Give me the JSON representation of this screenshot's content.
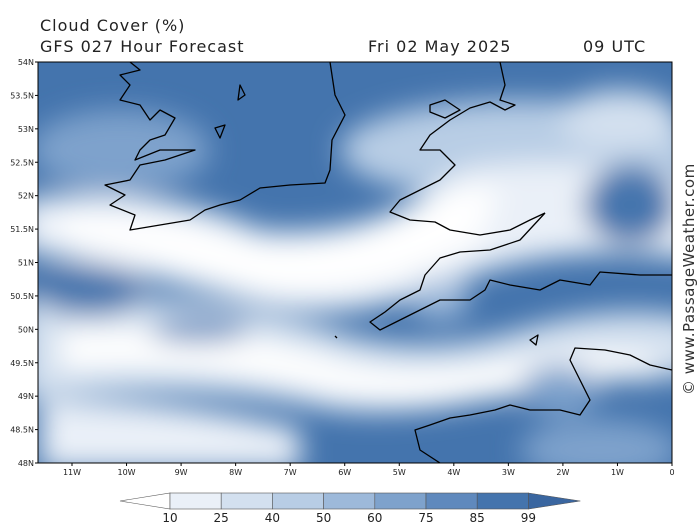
{
  "header": {
    "title": "Cloud Cover (%)",
    "subtitle": "GFS 027 Hour Forecast",
    "date": "Fri 02 May 2025",
    "time": "09 UTC"
  },
  "map": {
    "lat_labels": [
      "54N",
      "53.5N",
      "53N",
      "52.5N",
      "52N",
      "51.5N",
      "51N",
      "50.5N",
      "50N",
      "49.5N",
      "49N",
      "48.5N",
      "48N"
    ],
    "lon_labels": [
      "11W",
      "10W",
      "9W",
      "8W",
      "7W",
      "6W",
      "5W",
      "4W",
      "3W",
      "2W",
      "1W",
      "0"
    ]
  },
  "colorbar": {
    "labels": [
      10,
      25,
      40,
      50,
      60,
      75,
      85,
      99
    ],
    "colors": [
      "#ffffff",
      "#eaf0f8",
      "#d3e0ef",
      "#b8cde5",
      "#9db9da",
      "#7ea2cc",
      "#5f89bd",
      "#4474ad",
      "#3a66a0"
    ]
  },
  "watermark": "© www.PassageWeather.com"
}
